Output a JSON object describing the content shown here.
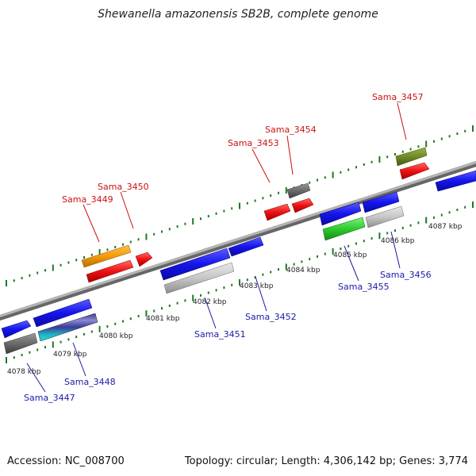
{
  "title": "Shewanella amazonensis SB2B, complete genome",
  "footer": {
    "accession": "Accession: NC_008700",
    "summary": "Topology: circular; Length: 4,306,142 bp; Genes: 3,774"
  },
  "colors": {
    "backbone": "#8c8c8c",
    "tick": "#1f7a1f",
    "forward_label": "#cc1111",
    "reverse_label": "#1a1aa8"
  },
  "kbp_labels": [
    "4078 kbp",
    "4079 kbp",
    "4080 kbp",
    "4081 kbp",
    "4082 kbp",
    "4083 kbp",
    "4084 kbp",
    "4085 kbp",
    "4086 kbp",
    "4087 kbp"
  ],
  "top_labels": [
    "Sama_3449",
    "Sama_3450",
    "Sama_3453",
    "Sama_3454",
    "Sama_3457"
  ],
  "bottom_labels": [
    "Sama_3447",
    "Sama_3448",
    "Sama_3451",
    "Sama_3452",
    "Sama_3455",
    "Sama_3456"
  ]
}
